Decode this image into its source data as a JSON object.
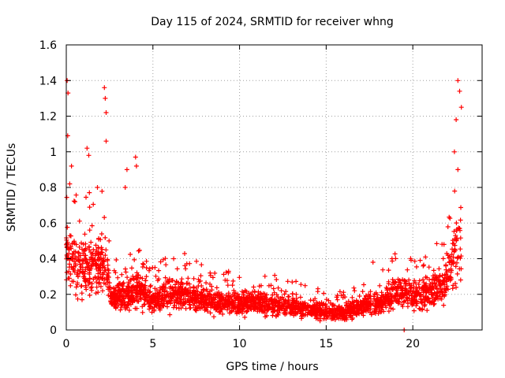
{
  "chart_data": {
    "type": "scatter",
    "title": "Day 115 of 2024, SRMTID for receiver whng",
    "xlabel": "GPS time / hours",
    "ylabel": "SRMTID / TECUs",
    "xlim": [
      0,
      24
    ],
    "ylim": [
      0,
      1.6
    ],
    "xticks": [
      0,
      5,
      10,
      15,
      20
    ],
    "xtick_labels": [
      "0",
      "5",
      "10",
      "15",
      "20"
    ],
    "yticks": [
      0,
      0.2,
      0.4,
      0.6,
      0.8,
      1.0,
      1.2,
      1.4,
      1.6
    ],
    "ytick_labels": [
      "0",
      "0.2",
      "0.4",
      "0.6",
      "0.8",
      "1",
      "1.2",
      "1.4",
      "1.6"
    ],
    "grid": true,
    "marker": "+",
    "colors": {
      "points": "#ff0000",
      "grid": "#a0a0a0",
      "axis": "#000000"
    },
    "series": [
      {
        "name": "SRMTID",
        "profile_hours": [
          0,
          0.3,
          0.8,
          1.5,
          2.3,
          2.6,
          3.5,
          4.2,
          5,
          6,
          7,
          8,
          9,
          10,
          11,
          12,
          13,
          14,
          15,
          16,
          17,
          18,
          19,
          20,
          21,
          21.8,
          22.3,
          22.8
        ],
        "profile_median": [
          0.45,
          0.38,
          0.35,
          0.38,
          0.35,
          0.18,
          0.2,
          0.22,
          0.16,
          0.2,
          0.2,
          0.16,
          0.15,
          0.15,
          0.15,
          0.14,
          0.13,
          0.12,
          0.1,
          0.1,
          0.13,
          0.15,
          0.2,
          0.2,
          0.2,
          0.25,
          0.35,
          0.55
        ],
        "peaks": [
          {
            "x": 0.05,
            "y": 1.4
          },
          {
            "x": 0.1,
            "y": 1.33
          },
          {
            "x": 0.08,
            "y": 1.09
          },
          {
            "x": 0.3,
            "y": 0.92
          },
          {
            "x": 0.2,
            "y": 0.82
          },
          {
            "x": 1.2,
            "y": 1.02
          },
          {
            "x": 1.3,
            "y": 0.98
          },
          {
            "x": 2.2,
            "y": 1.36
          },
          {
            "x": 2.25,
            "y": 1.3
          },
          {
            "x": 2.3,
            "y": 1.22
          },
          {
            "x": 2.3,
            "y": 1.06
          },
          {
            "x": 3.5,
            "y": 0.9
          },
          {
            "x": 4.0,
            "y": 0.97
          },
          {
            "x": 4.05,
            "y": 0.92
          },
          {
            "x": 22.6,
            "y": 1.4
          },
          {
            "x": 22.7,
            "y": 1.34
          },
          {
            "x": 22.5,
            "y": 1.18
          },
          {
            "x": 22.8,
            "y": 1.25
          },
          {
            "x": 22.4,
            "y": 1.0
          },
          {
            "x": 22.6,
            "y": 0.9
          },
          {
            "x": 19.5,
            "y": 0.0
          },
          {
            "x": 0.5,
            "y": 0.72
          },
          {
            "x": 1.8,
            "y": 0.8
          },
          {
            "x": 3.4,
            "y": 0.8
          },
          {
            "x": 6.2,
            "y": 0.4
          },
          {
            "x": 8.3,
            "y": 0.32
          },
          {
            "x": 17.7,
            "y": 0.38
          },
          {
            "x": 18.8,
            "y": 0.4
          },
          {
            "x": 21.8,
            "y": 0.48
          }
        ]
      }
    ]
  }
}
